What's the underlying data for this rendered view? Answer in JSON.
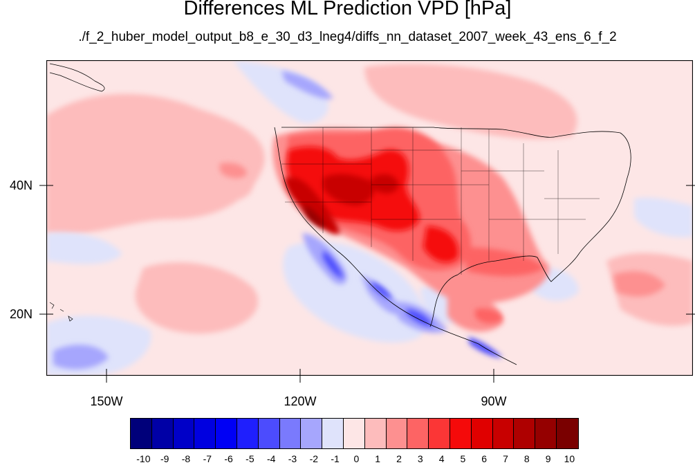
{
  "title": "Differences ML Prediction VPD [hPa]",
  "subtitle": "./f_2_huber_model_output_b8_e_30_d3_lneg4/diffs_nn_dataset_2007_week_43_ens_6_f_2",
  "map": {
    "lon_labels": [
      "150W",
      "120W",
      "90W"
    ],
    "lat_labels": [
      "40N",
      "20N"
    ]
  },
  "colorbar": {
    "labels": [
      "-10",
      "-9",
      "-8",
      "-7",
      "-6",
      "-5",
      "-4",
      "-3",
      "-2",
      "-1",
      "0",
      "1",
      "2",
      "3",
      "4",
      "5",
      "6",
      "7",
      "8",
      "9",
      "10"
    ],
    "colors": [
      "#00007a",
      "#0000a6",
      "#0000c8",
      "#0000e0",
      "#0000f5",
      "#1f1ffd",
      "#4c4cfd",
      "#7a7afd",
      "#a6a6fd",
      "#dfe3fb",
      "#fde6e6",
      "#fdbcbc",
      "#fd9090",
      "#fd6464",
      "#fb3636",
      "#f50a0a",
      "#e00000",
      "#c80000",
      "#ae0000",
      "#950000",
      "#7a0000"
    ]
  }
}
